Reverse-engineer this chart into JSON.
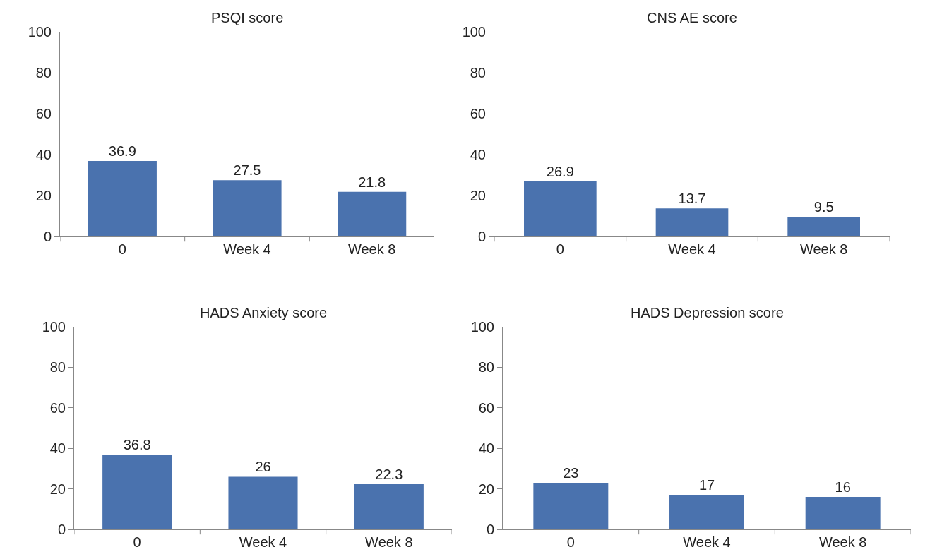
{
  "chart_data": [
    {
      "type": "bar",
      "title": "PSQI score",
      "categories": [
        "0",
        "Week 4",
        "Week 8"
      ],
      "values": [
        36.9,
        27.5,
        21.8
      ],
      "color": "#4a72ae",
      "ylim": [
        0,
        100
      ],
      "yticks": [
        0,
        20,
        40,
        60,
        80,
        100
      ],
      "data_labels": true
    },
    {
      "type": "bar",
      "title": "CNS AE score",
      "categories": [
        "0",
        "Week 4",
        "Week 8"
      ],
      "values": [
        26.9,
        13.7,
        9.5
      ],
      "color": "#4a72ae",
      "ylim": [
        0,
        100
      ],
      "yticks": [
        0,
        20,
        40,
        60,
        80,
        100
      ],
      "data_labels": true
    },
    {
      "type": "bar",
      "title": "HADS Anxiety score",
      "categories": [
        "0",
        "Week 4",
        "Week 8"
      ],
      "values": [
        36.8,
        26,
        22.3
      ],
      "color": "#4a72ae",
      "ylim": [
        0,
        100
      ],
      "yticks": [
        0,
        20,
        40,
        60,
        80,
        100
      ],
      "data_labels": true
    },
    {
      "type": "bar",
      "title": "HADS Depression score",
      "categories": [
        "0",
        "Week 4",
        "Week 8"
      ],
      "values": [
        23,
        17,
        16
      ],
      "color": "#4a72ae",
      "ylim": [
        0,
        100
      ],
      "yticks": [
        0,
        20,
        40,
        60,
        80,
        100
      ],
      "data_labels": true
    }
  ]
}
